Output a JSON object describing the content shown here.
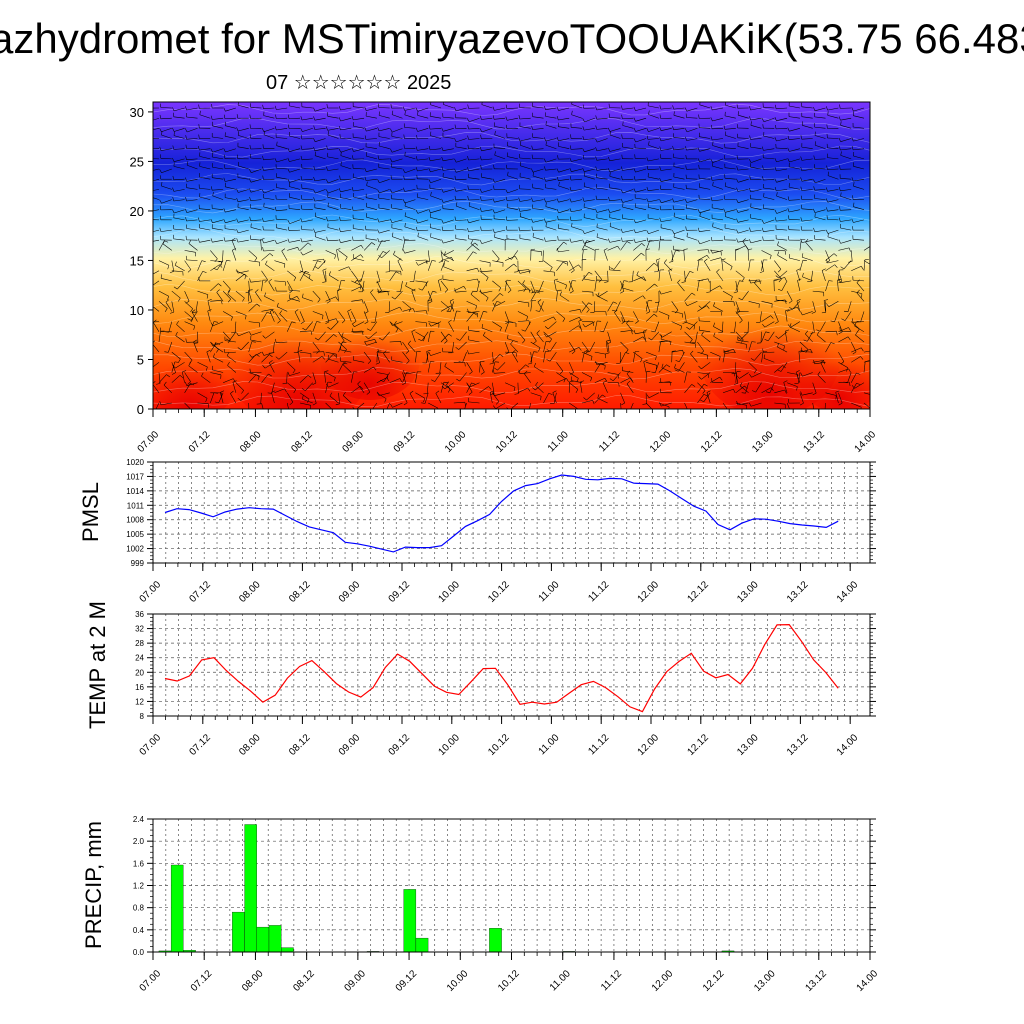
{
  "header": {
    "title": "azhydromet for MSTimiryazevoTOOUAKiK(53.75 66.483",
    "subtitle": "07 ☆☆☆☆☆☆ 2025"
  },
  "colors": {
    "pmsl_line": "#0000ff",
    "temp_line": "#ff0000",
    "precip_bar": "#00ff00",
    "precip_edge": "#000000",
    "section_palette": [
      "#ff0000",
      "#ff5a00",
      "#ff9f1a",
      "#ffd34d",
      "#fff0a0",
      "#6fd0ff",
      "#1e90ff",
      "#1f2fe0",
      "#3a10d8",
      "#7a30ff"
    ]
  },
  "chart_data": [
    {
      "type": "heatmap",
      "title": "",
      "xlabel": "",
      "ylabel": "",
      "x_ticks": [
        "07.00",
        "07.12",
        "08.00",
        "08.12",
        "09.00",
        "09.12",
        "10.00",
        "10.12",
        "11.00",
        "11.12",
        "12.00",
        "12.12",
        "13.00",
        "13.12",
        "14.00"
      ],
      "y_ticks": [
        0,
        5,
        10,
        15,
        20,
        25,
        30
      ],
      "ylim": [
        0,
        31
      ],
      "description_levels": {
        "warm_band": [
          0,
          11
        ],
        "yellow_band": [
          12,
          17
        ],
        "cyan_band": [
          17,
          21
        ],
        "blue_band": [
          21,
          31
        ]
      },
      "overlay": "wind barbs"
    },
    {
      "type": "line",
      "ylabel": "PMSL",
      "x_ticks": [
        "07.00",
        "07.12",
        "08.00",
        "08.12",
        "09.00",
        "09.12",
        "10.00",
        "10.12",
        "11.00",
        "11.12",
        "12.00",
        "12.12",
        "13.00",
        "13.12",
        "14.00"
      ],
      "y_ticks": [
        999,
        1002,
        1005,
        1008,
        1011,
        1014,
        1017,
        1020
      ],
      "ylim": [
        999,
        1020
      ],
      "series": [
        {
          "values": [
            1009.5,
            1010.3,
            1010.1,
            1009.4,
            1008.6,
            1009.6,
            1010.2,
            1010.5,
            1010.3,
            1010.2,
            1008.9,
            1007.6,
            1006.5,
            1005.9,
            1005.3,
            1003.3,
            1003.0,
            1002.5,
            1001.9,
            1001.3,
            1002.3,
            1002.2,
            1002.2,
            1002.6,
            1004.6,
            1006.6,
            1007.8,
            1009.1,
            1011.8,
            1014.0,
            1015.1,
            1015.5,
            1016.5,
            1017.3,
            1017.0,
            1016.4,
            1016.3,
            1016.6,
            1016.5,
            1015.6,
            1015.5,
            1015.4,
            1014.0,
            1012.4,
            1010.8,
            1009.8,
            1007.0,
            1005.9,
            1007.3,
            1008.2,
            1008.1,
            1007.7,
            1007.2,
            1006.9,
            1006.7,
            1006.4,
            1007.7
          ]
        }
      ]
    },
    {
      "type": "line",
      "ylabel": "TEMP at 2 M",
      "x_ticks": [
        "07.00",
        "07.12",
        "08.00",
        "08.12",
        "09.00",
        "09.12",
        "10.00",
        "10.12",
        "11.00",
        "11.12",
        "12.00",
        "12.12",
        "13.00",
        "13.12",
        "14.00"
      ],
      "y_ticks": [
        8,
        12,
        16,
        20,
        24,
        28,
        32,
        36
      ],
      "ylim": [
        8,
        36
      ],
      "series": [
        {
          "values": [
            18.3,
            17.6,
            19.0,
            23.4,
            24.0,
            20.5,
            17.5,
            14.8,
            11.8,
            13.7,
            18.4,
            21.6,
            23.2,
            20.2,
            16.9,
            14.6,
            13.2,
            15.8,
            21.3,
            25.0,
            23.0,
            19.6,
            16.2,
            14.5,
            13.9,
            17.4,
            21.0,
            21.1,
            16.6,
            11.2,
            11.8,
            11.3,
            11.8,
            14.2,
            16.6,
            17.5,
            15.8,
            13.3,
            10.5,
            9.2,
            15.4,
            20.2,
            23.0,
            25.2,
            20.3,
            18.5,
            19.4,
            16.8,
            21.1,
            27.6,
            33.0,
            33.1,
            28.5,
            23.4,
            19.9,
            15.6
          ]
        }
      ]
    },
    {
      "type": "bar",
      "ylabel": "PRECIP, mm",
      "x_ticks": [
        "07.00",
        "07.12",
        "08.00",
        "08.12",
        "09.00",
        "09.12",
        "10.00",
        "10.12",
        "11.00",
        "11.12",
        "12.00",
        "12.12",
        "13.00",
        "13.12",
        "14.00"
      ],
      "y_ticks": [
        "0.0",
        "0.4",
        "0.8",
        "1.2",
        "1.6",
        "2.0",
        "2.4"
      ],
      "ylim": [
        0,
        2.4
      ],
      "bar_interval_hours": 3,
      "values": [
        0.02,
        1.57,
        0.03,
        0,
        0,
        0,
        0.72,
        2.3,
        0.45,
        0.48,
        0.08,
        0,
        0,
        0,
        0,
        0,
        0,
        0.01,
        0,
        0,
        1.13,
        0.25,
        0,
        0,
        0,
        0,
        0,
        0.43,
        0,
        0,
        0,
        0,
        0,
        0.01,
        0,
        0,
        0,
        0,
        0,
        0,
        0,
        0,
        0,
        0,
        0,
        0,
        0.02,
        0,
        0,
        0,
        0,
        0,
        0,
        0,
        0,
        0
      ]
    }
  ]
}
